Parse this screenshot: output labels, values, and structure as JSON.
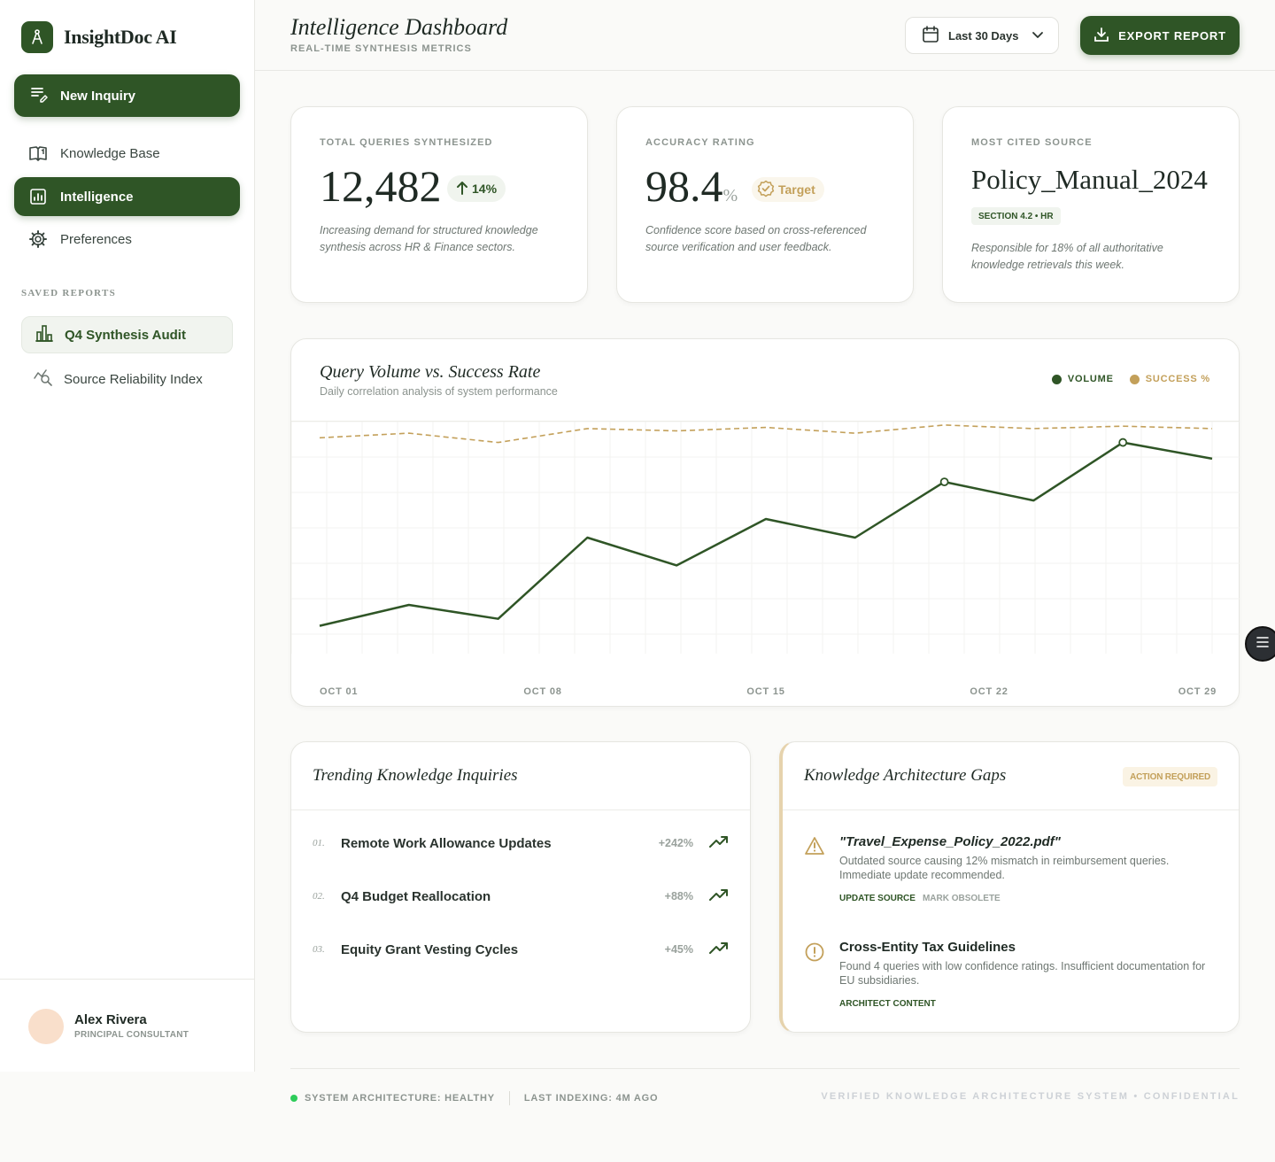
{
  "app": {
    "name": "InsightDoc AI"
  },
  "sidebar": {
    "new_inquiry": "New Inquiry",
    "nav": [
      {
        "label": "Knowledge Base",
        "icon": "book-icon"
      },
      {
        "label": "Intelligence",
        "icon": "chart-icon",
        "active": true
      },
      {
        "label": "Preferences",
        "icon": "gear-icon"
      }
    ],
    "saved_heading": "SAVED REPORTS",
    "reports": [
      {
        "label": "Q4 Synthesis Audit",
        "icon": "bar-chart-icon",
        "active": true
      },
      {
        "label": "Source Reliability Index",
        "icon": "analytics-search-icon"
      }
    ],
    "user": {
      "name": "Alex Rivera",
      "role": "PRINCIPAL CONSULTANT"
    }
  },
  "header": {
    "title": "Intelligence Dashboard",
    "subtitle": "REAL-TIME SYNTHESIS METRICS",
    "date_range": "Last 30 Days",
    "export_label": "EXPORT REPORT"
  },
  "stats": {
    "queries": {
      "label": "TOTAL QUERIES SYNTHESIZED",
      "value": "12,482",
      "delta": "14%",
      "desc": "Increasing demand for structured knowledge synthesis across HR & Finance sectors."
    },
    "accuracy": {
      "label": "ACCURACY RATING",
      "value": "98.4",
      "unit": "%",
      "badge": "Target",
      "desc": "Confidence score based on cross-referenced source verification and user feedback."
    },
    "source": {
      "label": "MOST CITED SOURCE",
      "value": "Policy_Manual_2024",
      "tag": "SECTION 4.2 • HR",
      "desc": "Responsible for 18% of all authoritative knowledge retrievals this week."
    }
  },
  "chart": {
    "title": "Query Volume vs. Success Rate",
    "subtitle": "Daily correlation analysis of system performance",
    "legend_volume": "VOLUME",
    "legend_success": "SUCCESS %",
    "color_volume": "#2f5526",
    "color_success": "#c3a05a"
  },
  "chart_data": {
    "type": "line",
    "x_ticks": [
      "OCT 01",
      "OCT 08",
      "OCT 15",
      "OCT 22",
      "OCT 29"
    ],
    "series": [
      {
        "name": "VOLUME",
        "values": [
          12,
          21,
          15,
          50,
          38,
          58,
          50,
          74,
          66,
          91,
          84
        ]
      },
      {
        "name": "SUCCESS %",
        "values": [
          93,
          95,
          91,
          97,
          96,
          97.5,
          95,
          98.5,
          97,
          98,
          97
        ]
      }
    ],
    "highlight_points": [
      {
        "series": "VOLUME",
        "index": 7
      },
      {
        "series": "VOLUME",
        "index": 9
      }
    ],
    "ylim": [
      0,
      100
    ],
    "grid": true
  },
  "trending": {
    "title": "Trending Knowledge Inquiries",
    "items": [
      {
        "num": "01.",
        "label": "Remote Work Allowance Updates",
        "delta": "+242%"
      },
      {
        "num": "02.",
        "label": "Q4 Budget Reallocation",
        "delta": "+88%"
      },
      {
        "num": "03.",
        "label": "Equity Grant Vesting Cycles",
        "delta": "+45%"
      }
    ]
  },
  "gaps": {
    "title": "Knowledge Architecture Gaps",
    "badge": "ACTION REQUIRED",
    "items": [
      {
        "title": "\"Travel_Expense_Policy_2022.pdf\"",
        "desc": "Outdated source causing 12% mismatch in reimbursement queries. Immediate update recommended.",
        "actions": [
          "UPDATE SOURCE",
          "MARK OBSOLETE"
        ],
        "icon": "warning-icon"
      },
      {
        "title": "Cross-Entity Tax Guidelines",
        "desc": "Found 4 queries with low confidence ratings. Insufficient documentation for EU subsidiaries.",
        "actions": [
          "ARCHITECT CONTENT"
        ],
        "icon": "alert-circle-icon"
      }
    ]
  },
  "footer": {
    "status": "SYSTEM ARCHITECTURE: HEALTHY",
    "indexing": "LAST INDEXING: 4M AGO",
    "notice": "VERIFIED KNOWLEDGE ARCHITECTURE SYSTEM • CONFIDENTIAL"
  }
}
